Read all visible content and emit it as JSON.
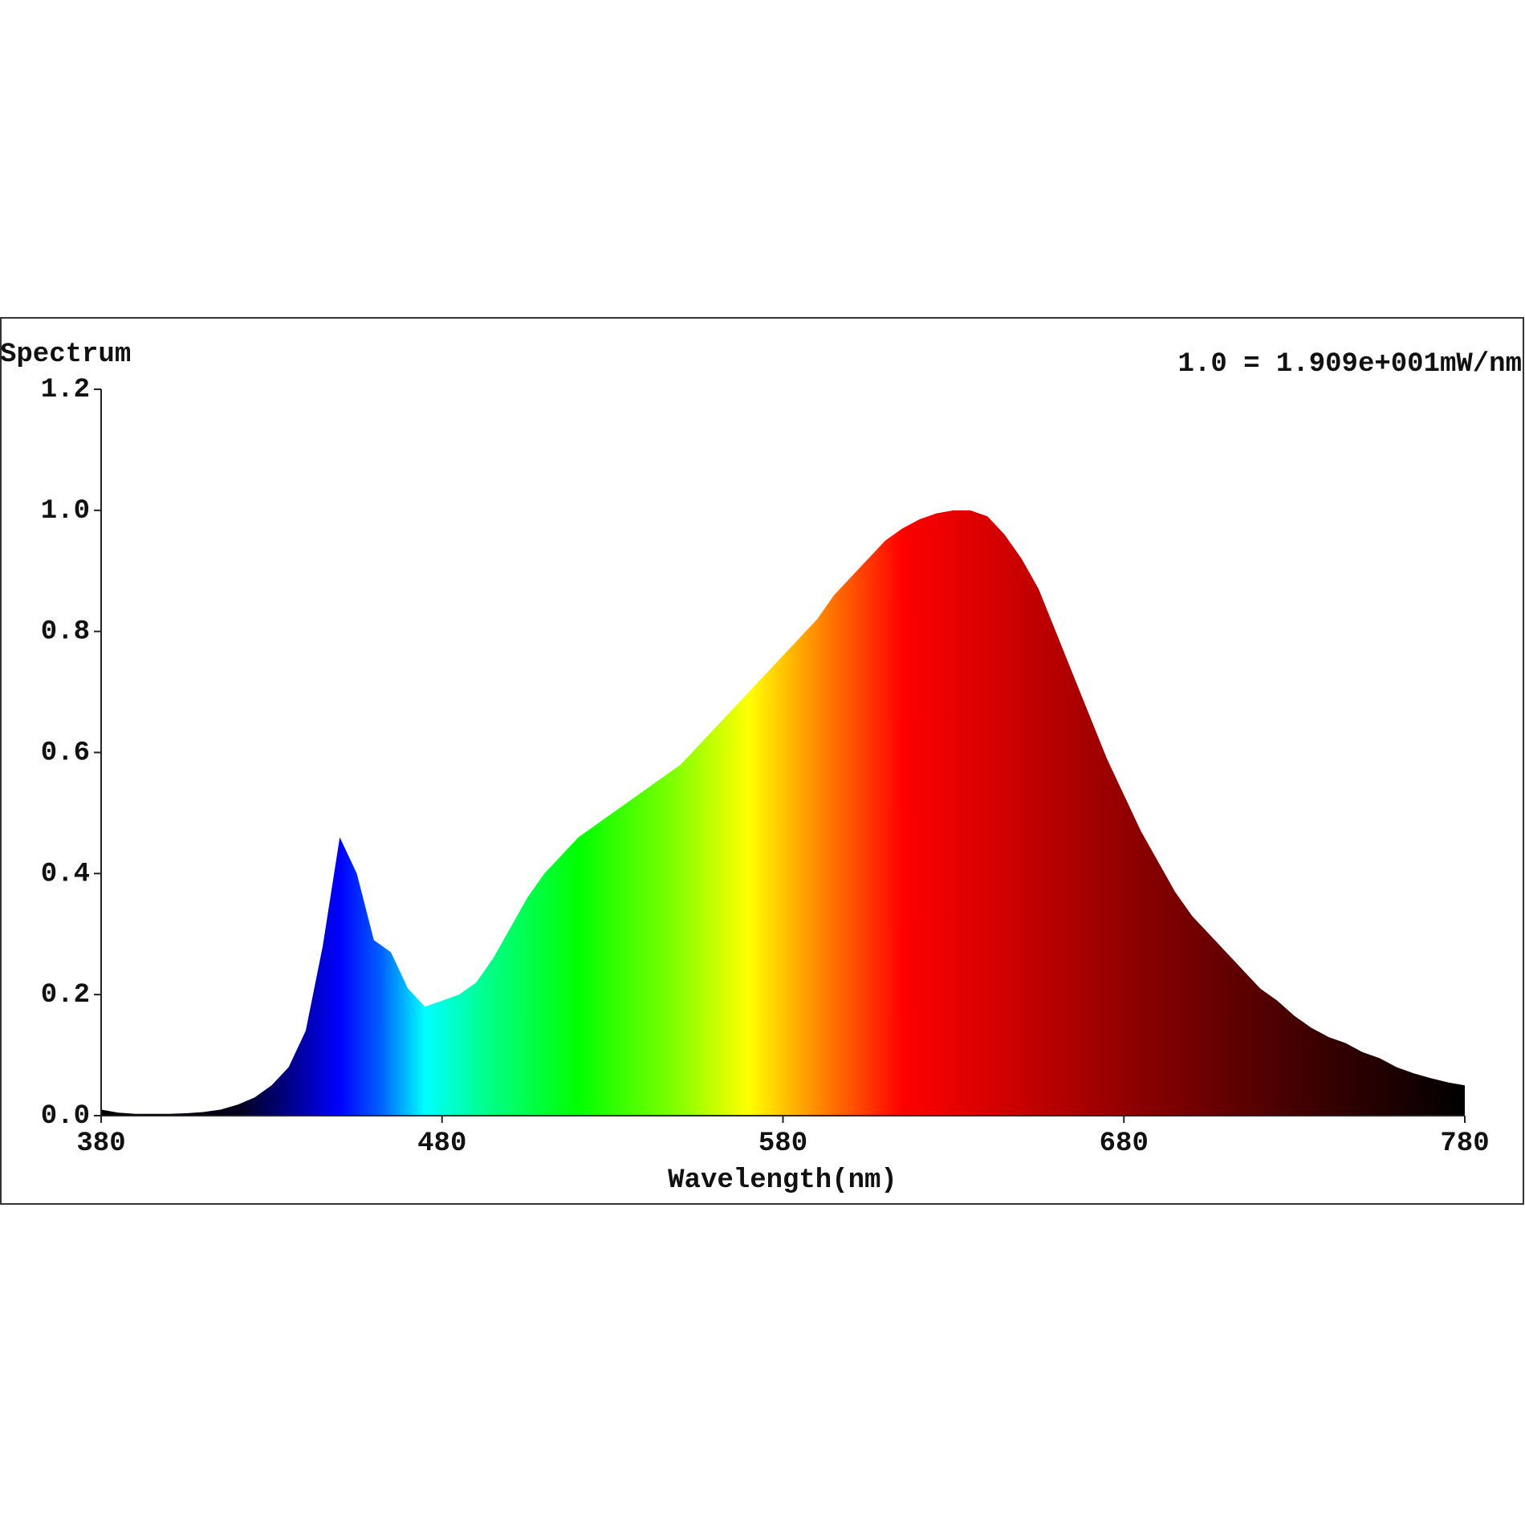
{
  "chart_data": {
    "type": "area",
    "title": "Spectrum",
    "annotation": "1.0 = 1.909e+001mW/nm",
    "x_label": "Wavelength(nm)",
    "x": [
      380,
      385,
      390,
      395,
      400,
      405,
      410,
      415,
      420,
      425,
      430,
      435,
      440,
      445,
      450,
      455,
      460,
      465,
      470,
      475,
      480,
      485,
      490,
      495,
      500,
      505,
      510,
      515,
      520,
      525,
      530,
      535,
      540,
      545,
      550,
      555,
      560,
      565,
      570,
      575,
      580,
      585,
      590,
      595,
      600,
      605,
      610,
      615,
      620,
      625,
      630,
      635,
      640,
      645,
      650,
      655,
      660,
      665,
      670,
      675,
      680,
      685,
      690,
      695,
      700,
      705,
      710,
      715,
      720,
      725,
      730,
      735,
      740,
      745,
      750,
      755,
      760,
      765,
      770,
      775,
      780
    ],
    "values": [
      0.01,
      0.005,
      0.003,
      0.003,
      0.003,
      0.004,
      0.006,
      0.01,
      0.018,
      0.03,
      0.05,
      0.08,
      0.14,
      0.28,
      0.46,
      0.4,
      0.29,
      0.27,
      0.21,
      0.18,
      0.19,
      0.2,
      0.22,
      0.26,
      0.31,
      0.36,
      0.4,
      0.43,
      0.46,
      0.48,
      0.5,
      0.52,
      0.54,
      0.56,
      0.58,
      0.61,
      0.64,
      0.67,
      0.7,
      0.73,
      0.76,
      0.79,
      0.82,
      0.86,
      0.89,
      0.92,
      0.95,
      0.97,
      0.985,
      0.995,
      1.0,
      1.0,
      0.99,
      0.96,
      0.92,
      0.87,
      0.8,
      0.73,
      0.66,
      0.59,
      0.53,
      0.47,
      0.42,
      0.37,
      0.33,
      0.3,
      0.27,
      0.24,
      0.21,
      0.19,
      0.165,
      0.145,
      0.13,
      0.12,
      0.105,
      0.095,
      0.08,
      0.07,
      0.062,
      0.055,
      0.05
    ],
    "xlim": [
      380,
      780
    ],
    "xticks": [
      380,
      480,
      580,
      680,
      780
    ],
    "ylim": [
      0,
      1.2
    ],
    "yticks": [
      {
        "value": 0,
        "label": "0.0"
      },
      0.2,
      0.4,
      0.6,
      0.8,
      {
        "value": 1,
        "label": "1.0"
      },
      1.2
    ],
    "fill_gradient": [
      {
        "x": 380,
        "color": "#000000"
      },
      {
        "x": 420,
        "color": "#05001a"
      },
      {
        "x": 432,
        "color": "#000070"
      },
      {
        "x": 450,
        "color": "#0000ff"
      },
      {
        "x": 462,
        "color": "#0060ff"
      },
      {
        "x": 475,
        "color": "#00ffff"
      },
      {
        "x": 492,
        "color": "#00ff90"
      },
      {
        "x": 520,
        "color": "#00ff00"
      },
      {
        "x": 548,
        "color": "#80ff00"
      },
      {
        "x": 570,
        "color": "#ffff00"
      },
      {
        "x": 592,
        "color": "#ff8000"
      },
      {
        "x": 615,
        "color": "#ff0000"
      },
      {
        "x": 645,
        "color": "#d00000"
      },
      {
        "x": 685,
        "color": "#8a0000"
      },
      {
        "x": 730,
        "color": "#440000"
      },
      {
        "x": 780,
        "color": "#000000"
      }
    ]
  }
}
